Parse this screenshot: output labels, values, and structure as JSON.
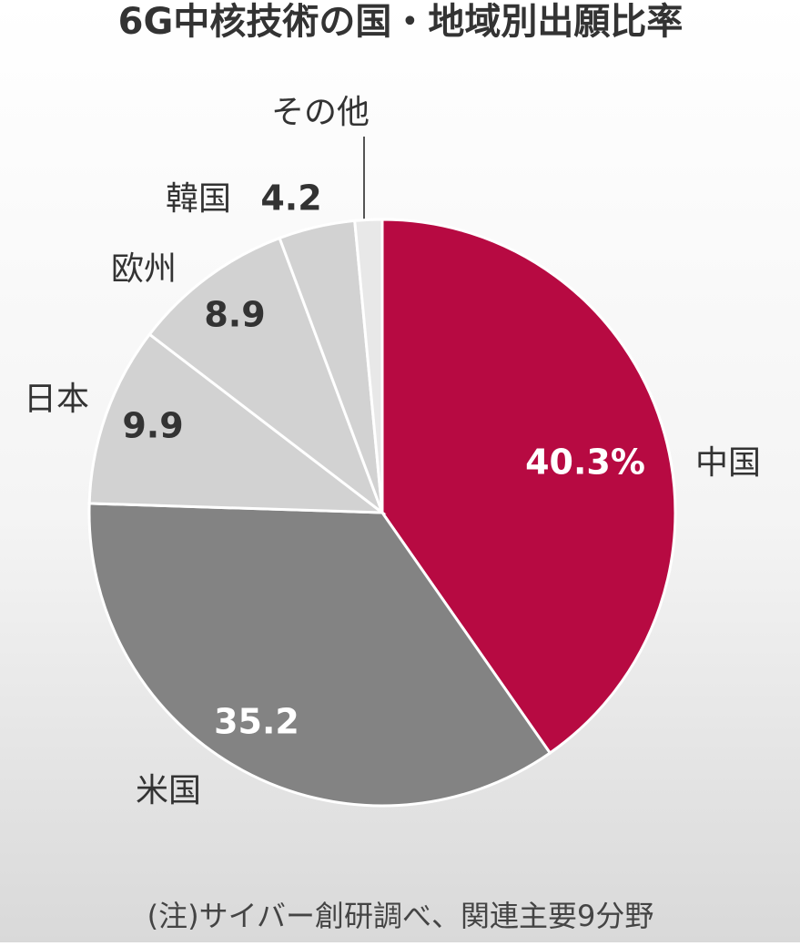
{
  "chart_data": {
    "type": "pie",
    "title": "6G中核技術の国・地域別出願比率",
    "categories": [
      "中国",
      "米国",
      "日本",
      "欧州",
      "韓国",
      "その他"
    ],
    "values": [
      40.3,
      35.2,
      9.9,
      8.9,
      4.2,
      1.5
    ],
    "value_labels": [
      "40.3%",
      "35.2",
      "9.9",
      "8.9",
      "4.2",
      null
    ],
    "colors": [
      "#b70a42",
      "#838383",
      "#d2d2d2",
      "#d2d2d2",
      "#d2d2d2",
      "#e8e8e8"
    ],
    "note": "(注)サイバー創研調べ、関連主要9分野"
  }
}
